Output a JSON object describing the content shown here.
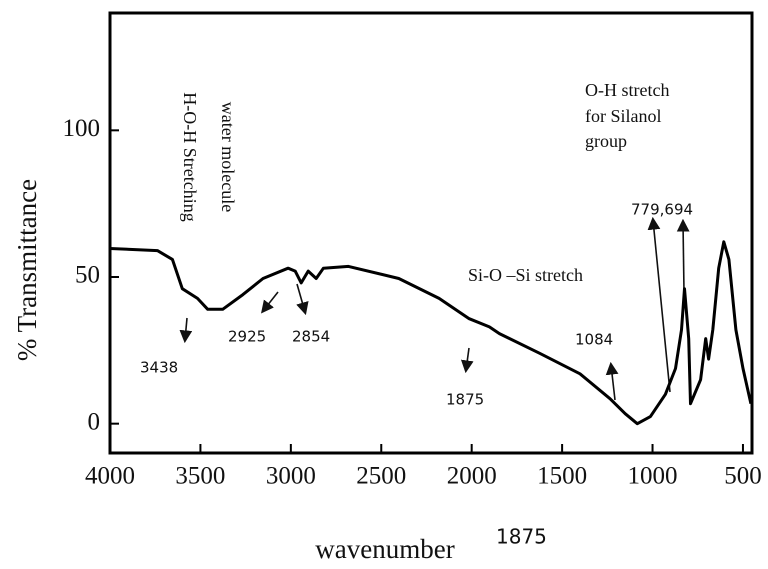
{
  "chart_data": {
    "type": "line",
    "x_label": "wavenumber",
    "y_label": "% Transmittance",
    "xlim": [
      4000,
      450
    ],
    "ylim": [
      -10,
      140
    ],
    "xticks": [
      4000,
      3500,
      3000,
      2500,
      2000,
      1500,
      1000,
      500
    ],
    "yticks": [
      0,
      50,
      100
    ],
    "grid": false,
    "series": [
      {
        "color": "#000000",
        "x": [
          4000,
          3738,
          3655,
          3600,
          3516,
          3460,
          3377,
          3265,
          3154,
          3015,
          2976,
          2943,
          2904,
          2860,
          2820,
          2681,
          2403,
          2180,
          2014,
          1902,
          1847,
          1624,
          1401,
          1235,
          1151,
          1084,
          1012,
          929,
          873,
          840,
          823,
          800,
          790,
          734,
          706,
          690,
          667,
          634,
          606,
          578,
          539,
          500,
          456
        ],
        "values": [
          59.7,
          59,
          56,
          46,
          42.7,
          39,
          39,
          44,
          49.5,
          53,
          52,
          48,
          52,
          49.5,
          53,
          53.6,
          49.5,
          42.7,
          35.8,
          33,
          30.7,
          24,
          17,
          8.5,
          3.4,
          0,
          2.4,
          10,
          18.8,
          32,
          46,
          29,
          6.8,
          15,
          29,
          22,
          32,
          53,
          62,
          56,
          32,
          18.8,
          6.8
        ]
      }
    ],
    "annotations": [
      "H-O-H Stretching",
      "water molecule",
      "O-H stretch",
      "for Silanol",
      "group",
      "779,694",
      "Si-O –Si stretch",
      "3438",
      "2925",
      "2854",
      "1875",
      "1084",
      "1875"
    ]
  }
}
